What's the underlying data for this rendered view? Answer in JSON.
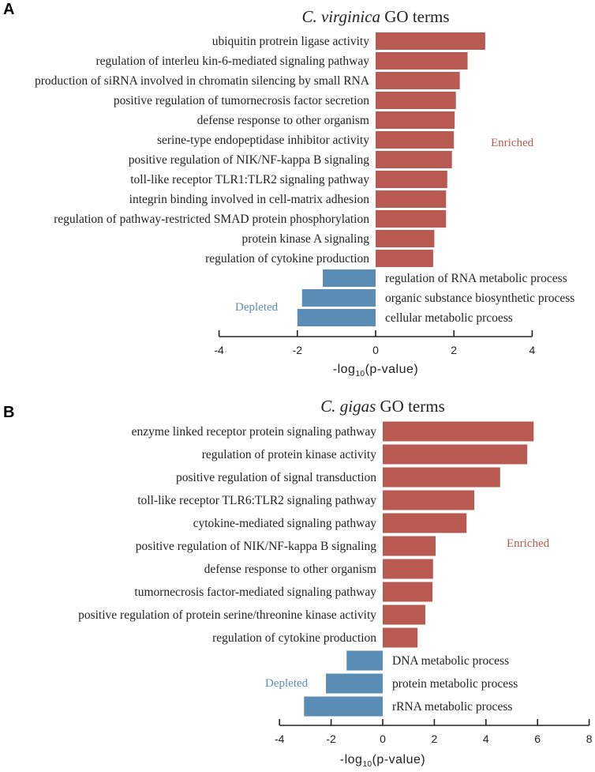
{
  "colors": {
    "enriched": "#b85a52",
    "depleted": "#5a8db5"
  },
  "chart_data": [
    {
      "type": "bar",
      "orientation": "horizontal",
      "panel": "A",
      "title_italic": "C. virginica",
      "title_rest": " GO terms",
      "xlabel_pre": "-log",
      "xlabel_sub": "10",
      "xlabel_post": "(p-value)",
      "xlim": [
        -4,
        4
      ],
      "xticks": [
        "-4",
        "-2",
        "0",
        "2",
        "4"
      ],
      "legend_enriched": "Enriched",
      "legend_depleted": "Depleted",
      "categories": [
        "ubiquitin protrein ligase activity",
        "regulation of interleu kin-6-mediated signaling pathway",
        "production of siRNA involved in chromatin silencing by small RNA",
        "positive regulation of tumornecrosis factor secretion",
        "defense response to other organism",
        "serine-type endopeptidase inhibitor activity",
        "positive regulation of NIK/NF-kappa B signaling",
        "toll-like receptor TLR1:TLR2 signaling pathway",
        "integrin binding involved in cell-matrix adhesion",
        "regulation of pathway-restricted SMAD protein phosphorylation",
        "protein kinase A signaling",
        "regulation of cytokine production",
        "regulation of RNA metabolic process",
        "organic substance biosynthetic process",
        "cellular metabolic prcoess"
      ],
      "values": [
        2.8,
        2.35,
        2.15,
        2.05,
        2.02,
        2.0,
        1.95,
        1.83,
        1.8,
        1.8,
        1.5,
        1.47,
        -1.35,
        -1.88,
        -2.0
      ]
    },
    {
      "type": "bar",
      "orientation": "horizontal",
      "panel": "B",
      "title_italic": "C. gigas",
      "title_rest": " GO terms",
      "xlabel_pre": "-log",
      "xlabel_sub": "10",
      "xlabel_post": "(p-value)",
      "xlim": [
        -4,
        8
      ],
      "xticks": [
        "-4",
        "-2",
        "0",
        "2",
        "4",
        "6",
        "8"
      ],
      "legend_enriched": "Enriched",
      "legend_depleted": "Depleted",
      "categories": [
        "enzyme linked receptor protein signaling pathway",
        "regulation of protein kinase activity",
        "positive regulation of signal transduction",
        "toll-like receptor TLR6:TLR2 signaling pathway",
        "cytokine-mediated signaling pathway",
        "positive regulation of NIK/NF-kappa B signaling",
        "defense response to other organism",
        "tumornecrosis factor-mediated signaling pathway",
        "positive regulation of protein serine/threonine kinase activity",
        "regulation of cytokine production",
        "DNA metabolic process",
        "protein metabolic process",
        "rRNA metabolic process"
      ],
      "values": [
        5.85,
        5.6,
        4.55,
        3.55,
        3.25,
        2.05,
        1.95,
        1.93,
        1.65,
        1.35,
        -1.4,
        -2.2,
        -3.05
      ]
    }
  ]
}
